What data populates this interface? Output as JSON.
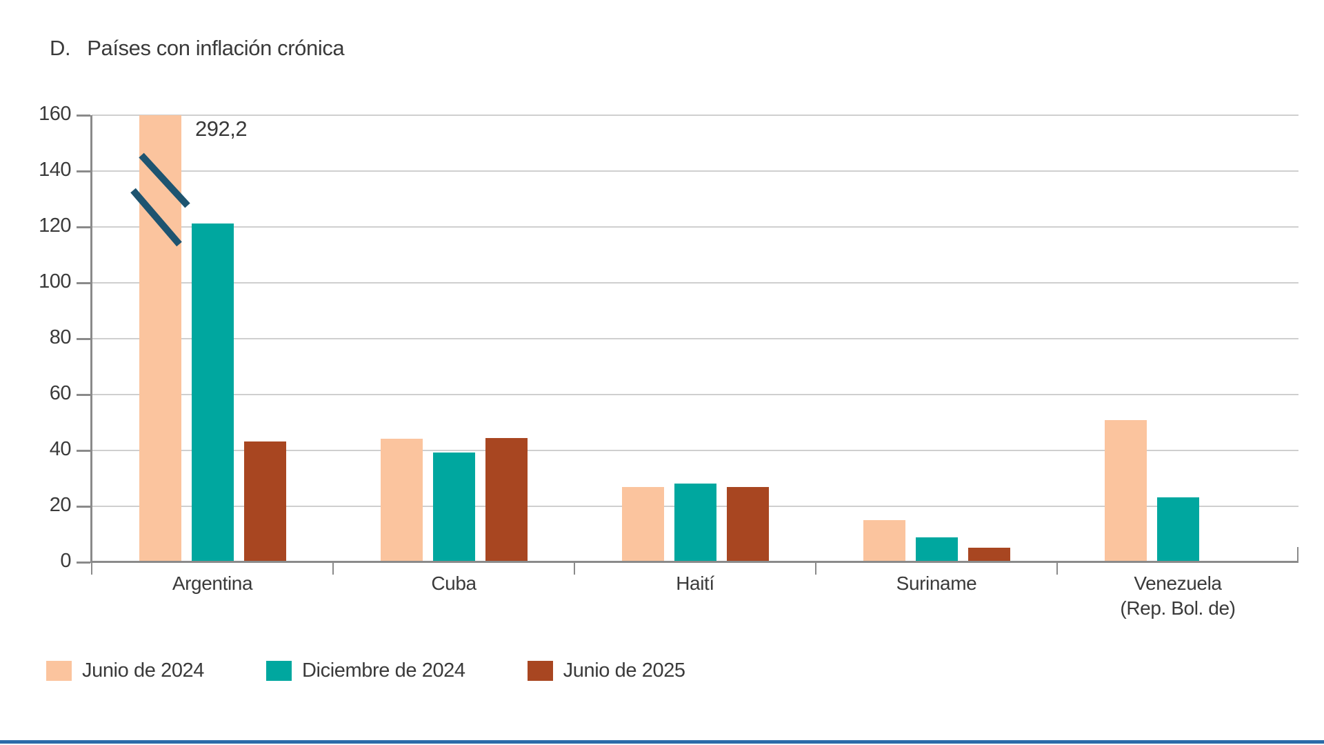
{
  "page": {
    "title_prefix": "D.",
    "title_text": "Países con inflación crónica",
    "bottom_rule_color": "#2b6ca9"
  },
  "chart_data": {
    "type": "bar",
    "title": "D. Países con inflación crónica",
    "categories": [
      "Argentina",
      "Cuba",
      "Haití",
      "Suriname",
      "Venezuela (Rep. Bol. de)"
    ],
    "category_label_lines": [
      [
        "Argentina"
      ],
      [
        "Cuba"
      ],
      [
        "Haití"
      ],
      [
        "Suriname"
      ],
      [
        "Venezuela",
        "(Rep. Bol. de)"
      ]
    ],
    "series": [
      {
        "name": "Junio de 2024",
        "color": "#FBC49E",
        "values": [
          292.2,
          44.1,
          26.8,
          15.0,
          50.9
        ]
      },
      {
        "name": "Diciembre de 2024",
        "color": "#00A79F",
        "values": [
          121.3,
          39.3,
          28.1,
          8.9,
          23.2
        ]
      },
      {
        "name": "Junio de 2025",
        "color": "#A84621",
        "values": [
          43.2,
          44.4,
          26.8,
          5.1,
          null
        ]
      }
    ],
    "ylim": [
      0,
      160
    ],
    "ytick_step": 20,
    "ytick_labels": [
      "0",
      "20",
      "40",
      "60",
      "80",
      "100",
      "120",
      "140",
      "160"
    ],
    "grid": true,
    "legend_position": "bottom",
    "annotation": {
      "text": "292,2",
      "series": "Junio de 2024",
      "category": "Argentina",
      "note": "bar clipped at axis maximum, shown with break marker",
      "break_marker_color": "#1E5470"
    },
    "axis_color": "#8a8a8a",
    "grid_color": "#cfcfcf"
  }
}
